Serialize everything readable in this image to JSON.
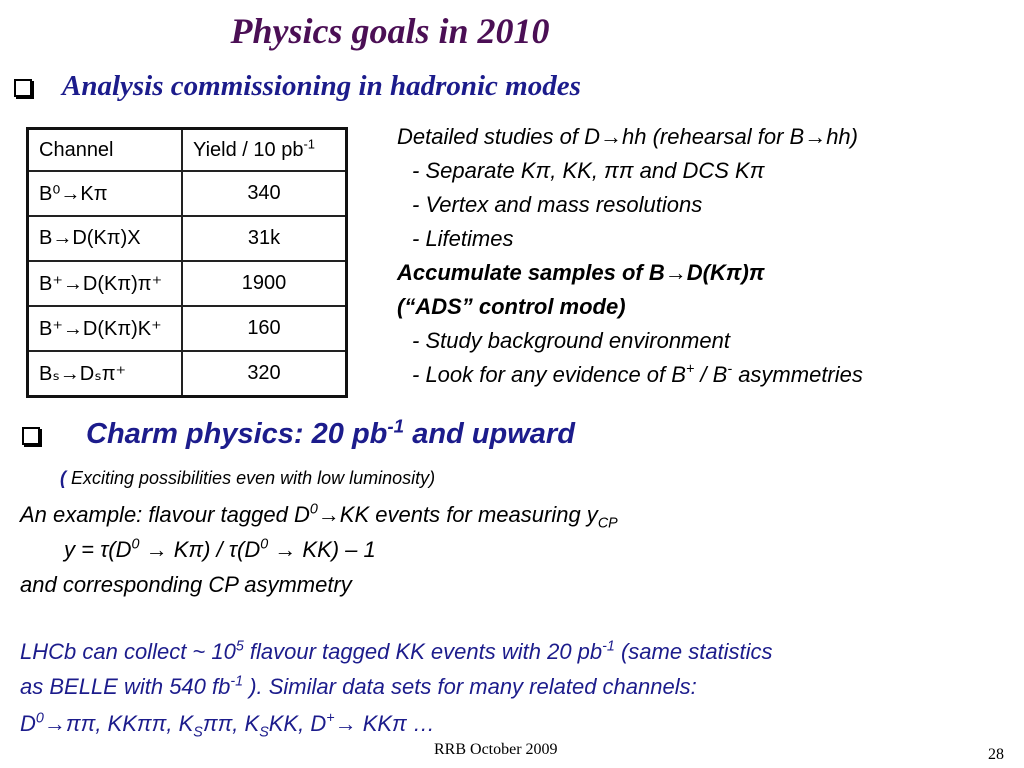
{
  "title": "Physics goals in 2010",
  "section1": {
    "heading": "Analysis commissioning in hadronic modes"
  },
  "table": {
    "headers": {
      "channel": "Channel",
      "yield_main": "Yield / 10 pb",
      "yield_sup": "-1"
    },
    "rows": [
      {
        "channel": "B⁰→Kπ",
        "yield": "340"
      },
      {
        "channel": "B→D(Kπ)X",
        "yield": "31k"
      },
      {
        "channel": "B⁺→D(Kπ)π⁺",
        "yield": "1900"
      },
      {
        "channel": "B⁺→D(Kπ)K⁺",
        "yield": "160"
      },
      {
        "channel": "Bₛ→Dₛπ⁺",
        "yield": "320"
      }
    ]
  },
  "right_panel": {
    "line1": "Detailed studies of D→hh (rehearsal for B→hh)",
    "line2": "- Separate Kπ, KK, ππ and DCS Kπ",
    "line3": "- Vertex and mass resolutions",
    "line4": "- Lifetimes",
    "line5": "Accumulate samples of B→D(Kπ)π",
    "line6": "(“ADS” control mode)",
    "line7": "- Study background environment",
    "line8_a": "- Look for any evidence of B",
    "line8_sup1": "+",
    "line8_b": " / B",
    "line8_sup2": "-",
    "line8_c": " asymmetries"
  },
  "section2": {
    "heading_a": "Charm physics: 20 pb",
    "heading_sup": "-1",
    "heading_b": " and upward",
    "note_paren": "(",
    "note": " Exciting possibilities even with low luminosity)"
  },
  "body": {
    "l1_a": "An example: flavour tagged D",
    "l1_sup": "0",
    "l1_b": "→KK events for measuring y",
    "l1_sub": "CP",
    "l2_a": "y = τ(D",
    "l2_sup1": "0",
    "l2_b": " → Kπ) / τ(D",
    "l2_sup2": "0",
    "l2_c": " → KK) – 1",
    "l3": "and corresponding CP asymmetry",
    "l4_a": "LHCb can collect ~ 10",
    "l4_sup1": "5",
    "l4_b": " flavour tagged KK events with 20 pb",
    "l4_sup2": "-1",
    "l4_c": "  (same statistics",
    "l5_a": "as BELLE with 540 fb",
    "l5_sup": "-1",
    "l5_b": " ). Similar data sets for many related channels:",
    "l6_a": "D",
    "l6_sup1": "0",
    "l6_b": "→ππ, KKππ, K",
    "l6_sub1": "S",
    "l6_c": "ππ, K",
    "l6_sub2": "S",
    "l6_d": "KK,  D",
    "l6_sup2": "+",
    "l6_e": "→ KKπ …"
  },
  "footer": {
    "text": "RRB October 2009",
    "page": "28"
  }
}
